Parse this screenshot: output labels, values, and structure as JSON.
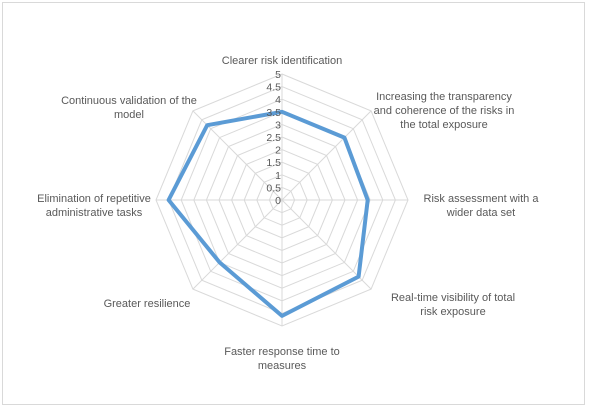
{
  "chart_data": {
    "type": "radar",
    "title": "",
    "categories": [
      "Clearer risk identification",
      "Increasing the transparency\nand coherence of the risks in\nthe total exposure",
      "Risk assessment with a\nwider data set",
      "Real-time visibility of total\nrisk exposure",
      "Faster response time to\nmeasures",
      "Greater resilience",
      "Elimination of repetitive\nadministrative tasks",
      "Continuous validation of the\nmodel"
    ],
    "series": [
      {
        "values": [
          3.5,
          3.5,
          3.4,
          4.3,
          4.6,
          3.5,
          4.5,
          4.2
        ]
      }
    ],
    "rlim": [
      0,
      5
    ],
    "ticks": [
      "0",
      "0.5",
      "1",
      "1.5",
      "2",
      "2.5",
      "3",
      "3.5",
      "4",
      "4.5",
      "5"
    ],
    "grid": true,
    "legend": "none",
    "colors": {
      "series": "#5b9bd5",
      "grid": "#d9d9d9",
      "text": "#595959"
    }
  }
}
